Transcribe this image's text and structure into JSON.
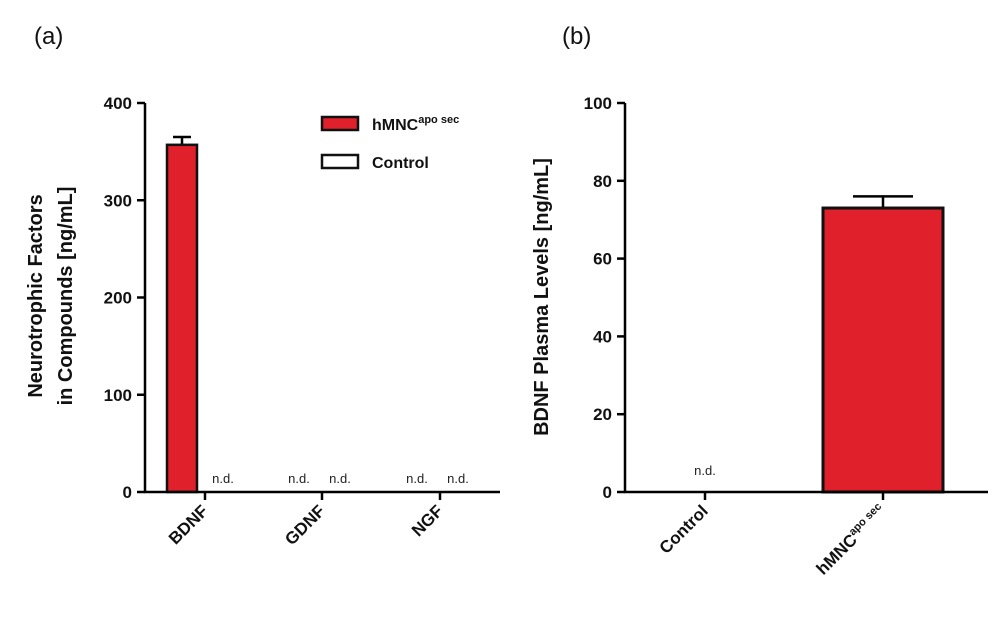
{
  "chart_data": [
    {
      "panel_label": "(a)",
      "type": "bar",
      "ylabel_line1": "Neurotrophic Factors",
      "ylabel_line2": "in  Compounds [ng/mL]",
      "ylim": [
        0,
        400
      ],
      "yticks": [
        0,
        100,
        200,
        300,
        400
      ],
      "categories": [
        "BDNF",
        "GDNF",
        "NGF"
      ],
      "series": [
        {
          "name": "hMNC",
          "name_sup": "apo sec",
          "color": "#e0202a",
          "values": [
            357,
            null,
            null
          ],
          "errors": [
            8,
            null,
            null
          ],
          "nd_label": "n.d."
        },
        {
          "name": "Control",
          "color": "#ffffff",
          "values": [
            null,
            null,
            null
          ],
          "errors": [
            null,
            null,
            null
          ],
          "nd_label": "n.d."
        }
      ],
      "not_detected_label": "n.d.",
      "legend_position": "top-right"
    },
    {
      "panel_label": "(b)",
      "type": "bar",
      "ylabel": "BDNF  Plasma Levels [ng/mL]",
      "ylim": [
        0,
        100
      ],
      "yticks": [
        0,
        20,
        40,
        60,
        80,
        100
      ],
      "categories": [
        {
          "label": "Control",
          "sup": ""
        },
        {
          "label": "hMNC",
          "sup": "apo sec"
        }
      ],
      "values": [
        null,
        73
      ],
      "errors": [
        null,
        3
      ],
      "colors": [
        "#ffffff",
        "#e0202a"
      ],
      "not_detected_label": "n.d."
    }
  ]
}
